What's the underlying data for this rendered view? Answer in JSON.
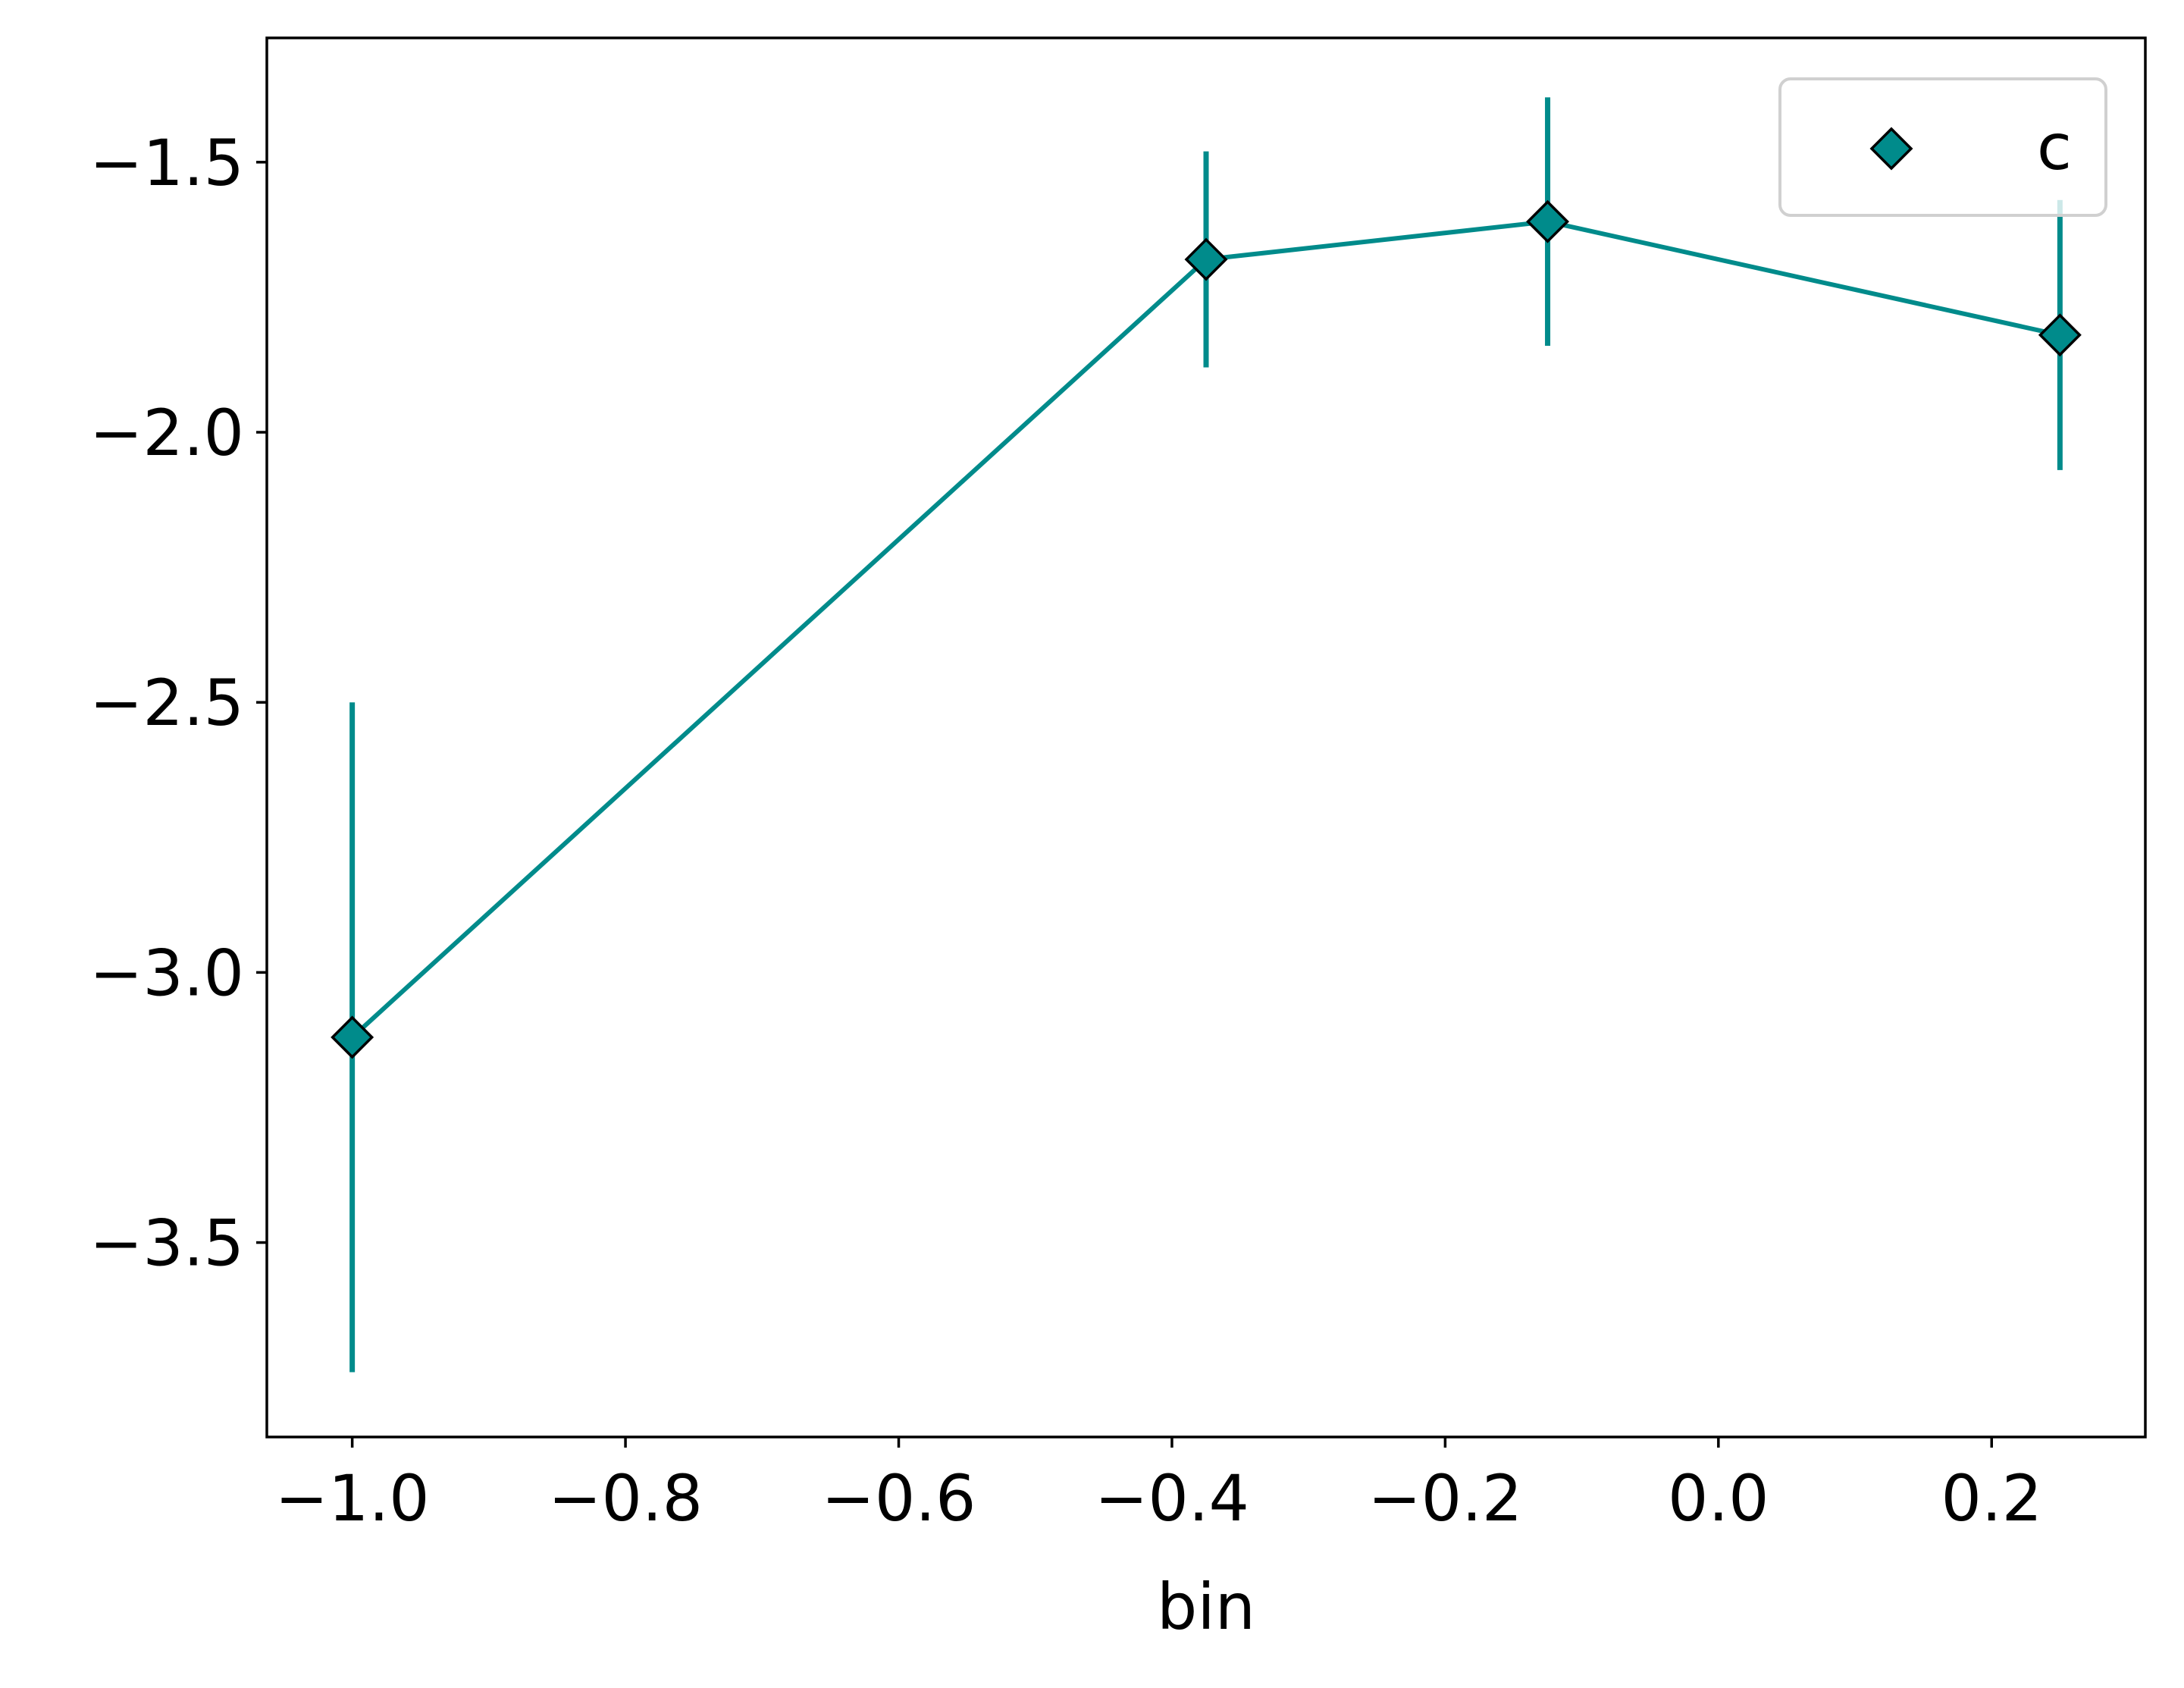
{
  "chart_data": {
    "type": "line",
    "title": "",
    "xlabel": "bin",
    "ylabel": "",
    "xlim": [
      -1.0625,
      0.3125
    ],
    "ylim": [
      -3.86,
      -1.27
    ],
    "xticks": [
      -1.0,
      -0.8,
      -0.6,
      -0.4,
      -0.2,
      0.0,
      0.2
    ],
    "xtick_labels": [
      "−1.0",
      "−0.8",
      "−0.6",
      "−0.4",
      "−0.2",
      "0.0",
      "0.2"
    ],
    "yticks": [
      -1.5,
      -2.0,
      -2.5,
      -3.0,
      -3.5
    ],
    "ytick_labels": [
      "−1.5",
      "−2.0",
      "−2.5",
      "−3.0",
      "−3.5"
    ],
    "grid": false,
    "legend_position": "top-right",
    "series": [
      {
        "name": "c",
        "color": "#008b8b",
        "marker": "diamond",
        "x": [
          -1.0,
          -0.375,
          -0.125,
          0.25
        ],
        "y": [
          -3.12,
          -1.68,
          -1.61,
          -1.82
        ],
        "yerr": [
          0.62,
          0.2,
          0.23,
          0.25
        ]
      }
    ]
  }
}
